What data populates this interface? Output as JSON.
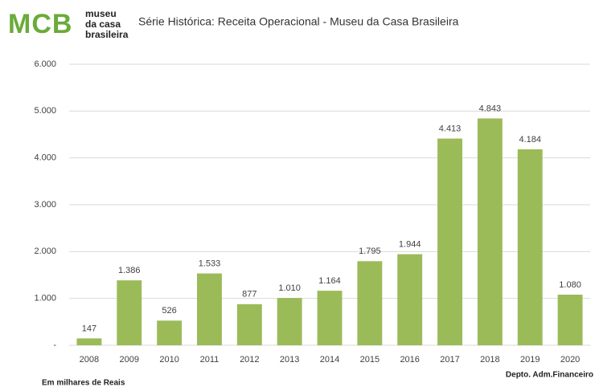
{
  "logo": {
    "mark": "MCB",
    "lines": [
      "museu",
      "da casa",
      "brasileira"
    ]
  },
  "chart_data": {
    "type": "bar",
    "title": "Série Histórica: Receita Operacional - Museu da Casa Brasileira",
    "categories": [
      "2008",
      "2009",
      "2010",
      "2011",
      "2012",
      "2013",
      "2014",
      "2015",
      "2016",
      "2017",
      "2018",
      "2019",
      "2020"
    ],
    "values": [
      147,
      1386,
      526,
      1533,
      877,
      1010,
      1164,
      1795,
      1944,
      4413,
      4843,
      4184,
      1080
    ],
    "value_labels": [
      "147",
      "1.386",
      "526",
      "1.533",
      "877",
      "1.010",
      "1.164",
      "1.795",
      "1.944",
      "4.413",
      "4.843",
      "4.184",
      "1.080"
    ],
    "color": "#9bbb59",
    "ylim": [
      0,
      6000
    ],
    "yticks": [
      {
        "value": 0,
        "label": "-"
      },
      {
        "value": 1000,
        "label": "1.000"
      },
      {
        "value": 2000,
        "label": "2.000"
      },
      {
        "value": 3000,
        "label": "3.000"
      },
      {
        "value": 4000,
        "label": "4.000"
      },
      {
        "value": 5000,
        "label": "5.000"
      },
      {
        "value": 6000,
        "label": "6.000"
      }
    ],
    "grid": true,
    "annotations": [
      "Em milhares de Reais",
      "Depto. Adm.Financeiro"
    ]
  }
}
